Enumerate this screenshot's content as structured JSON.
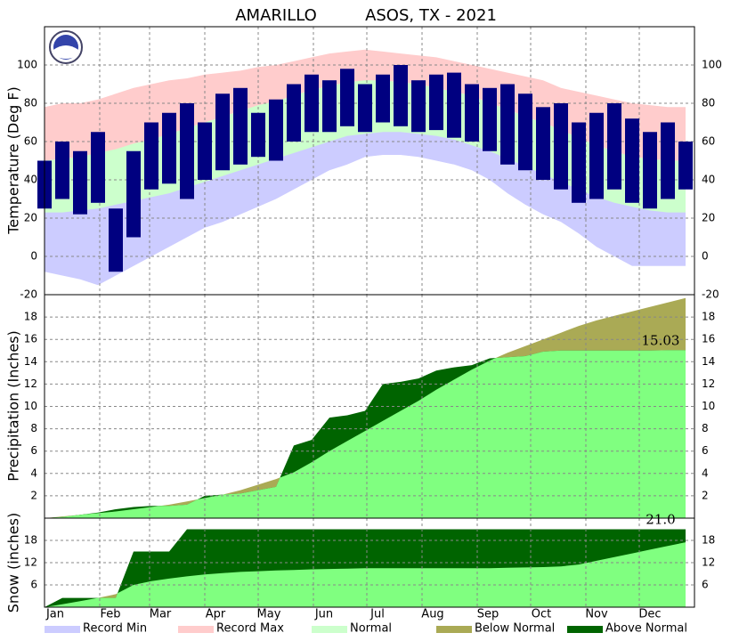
{
  "chart_data": {
    "type": "climate",
    "title": "AMARILLO",
    "subtitle": "ASOS, TX - 2021",
    "xlim": [
      0,
      365
    ],
    "x": [
      0,
      10,
      20,
      30,
      40,
      50,
      60,
      70,
      80,
      90,
      100,
      110,
      120,
      130,
      140,
      150,
      160,
      170,
      180,
      190,
      200,
      210,
      220,
      230,
      240,
      250,
      260,
      270,
      280,
      290,
      300,
      310,
      320,
      330,
      340,
      350,
      360
    ],
    "xticks": [
      {
        "value": 0,
        "label": "Jan"
      },
      {
        "value": 31,
        "label": "Feb"
      },
      {
        "value": 59,
        "label": "Mar"
      },
      {
        "value": 90,
        "label": "Apr"
      },
      {
        "value": 120,
        "label": "May"
      },
      {
        "value": 151,
        "label": "Jun"
      },
      {
        "value": 181,
        "label": "Jul"
      },
      {
        "value": 212,
        "label": "Aug"
      },
      {
        "value": 243,
        "label": "Sep"
      },
      {
        "value": 273,
        "label": "Oct"
      },
      {
        "value": 304,
        "label": "Nov"
      },
      {
        "value": 334,
        "label": "Dec"
      }
    ],
    "legend": [
      {
        "name": "Record Min",
        "color": "#ccccff"
      },
      {
        "name": "Record Max",
        "color": "#ffcccc"
      },
      {
        "name": "Normal",
        "color": "#ccffcc"
      },
      {
        "name": "Below Normal",
        "color": "#aaaa55"
      },
      {
        "name": "Above Normal",
        "color": "#006400"
      }
    ],
    "panels": [
      {
        "type": "temperature",
        "ylabel": "Temperature (Deg F)",
        "ylim": [
          -20,
          120
        ],
        "yticks": [
          -20,
          0,
          20,
          40,
          60,
          80,
          100
        ],
        "grid": true,
        "observed_color": "#000080",
        "record_max": [
          78,
          80,
          80,
          82,
          85,
          88,
          90,
          92,
          93,
          95,
          96,
          97,
          99,
          100,
          102,
          104,
          106,
          107,
          108,
          107,
          106,
          105,
          104,
          102,
          100,
          98,
          96,
          94,
          92,
          88,
          86,
          84,
          82,
          80,
          79,
          78,
          78
        ],
        "normal_high": [
          50,
          51,
          52,
          54,
          56,
          59,
          61,
          64,
          67,
          70,
          73,
          76,
          79,
          81,
          84,
          87,
          89,
          91,
          92,
          92,
          91,
          90,
          88,
          86,
          84,
          80,
          77,
          73,
          70,
          66,
          62,
          58,
          55,
          52,
          51,
          50,
          50
        ],
        "normal_low": [
          23,
          23,
          24,
          25,
          27,
          29,
          31,
          33,
          36,
          39,
          42,
          45,
          48,
          51,
          54,
          57,
          60,
          63,
          64,
          65,
          65,
          64,
          63,
          61,
          58,
          55,
          51,
          47,
          43,
          39,
          35,
          31,
          28,
          26,
          24,
          23,
          23
        ],
        "record_min": [
          -8,
          -10,
          -12,
          -15,
          -10,
          -5,
          0,
          5,
          10,
          15,
          18,
          22,
          26,
          30,
          35,
          40,
          45,
          48,
          52,
          53,
          53,
          52,
          50,
          48,
          45,
          40,
          33,
          27,
          22,
          18,
          12,
          5,
          0,
          -5,
          -5,
          -5,
          -5
        ],
        "observed_high": [
          50,
          60,
          55,
          65,
          25,
          55,
          70,
          75,
          80,
          70,
          85,
          88,
          75,
          82,
          90,
          95,
          92,
          98,
          90,
          95,
          100,
          92,
          95,
          96,
          90,
          88,
          90,
          85,
          78,
          80,
          70,
          75,
          80,
          72,
          65,
          70,
          60
        ],
        "observed_low": [
          25,
          30,
          22,
          28,
          -8,
          10,
          35,
          38,
          30,
          40,
          45,
          48,
          52,
          50,
          60,
          65,
          65,
          68,
          65,
          70,
          68,
          65,
          66,
          62,
          60,
          55,
          48,
          45,
          40,
          35,
          28,
          30,
          35,
          28,
          25,
          30,
          35
        ]
      },
      {
        "type": "cumulative",
        "ylabel": "Precipitation (Inches)",
        "ylim": [
          0,
          20
        ],
        "yticks": [
          2,
          4,
          6,
          8,
          10,
          12,
          14,
          16,
          18
        ],
        "grid": true,
        "normal_color": "#80ff80",
        "below_color": "#aaaa55",
        "above_color": "#006400",
        "observed": [
          0,
          0.1,
          0.3,
          0.5,
          0.8,
          1.0,
          1.1,
          1.1,
          1.2,
          2.0,
          2.1,
          2.2,
          2.5,
          2.8,
          6.5,
          7.0,
          9.0,
          9.2,
          9.6,
          12.0,
          12.2,
          12.5,
          13.2,
          13.5,
          13.7,
          14.3,
          14.4,
          14.5,
          14.9,
          15.0,
          15.0,
          15.0,
          15.0,
          15.0,
          15.0,
          15.03,
          15.03
        ],
        "normal": [
          0,
          0.15,
          0.3,
          0.45,
          0.6,
          0.8,
          1.0,
          1.2,
          1.5,
          1.8,
          2.1,
          2.5,
          3.0,
          3.5,
          4.1,
          5.0,
          6.0,
          6.9,
          7.8,
          8.7,
          9.6,
          10.5,
          11.5,
          12.4,
          13.3,
          14.1,
          14.8,
          15.4,
          16.0,
          16.6,
          17.2,
          17.7,
          18.1,
          18.5,
          18.9,
          19.3,
          19.7
        ],
        "annotation": "15.03"
      },
      {
        "type": "cumulative",
        "ylabel": "Snow (inches)",
        "ylim": [
          0,
          24
        ],
        "yticks": [
          6,
          12,
          18
        ],
        "grid": true,
        "normal_color": "#80ff80",
        "below_color": "#aaaa55",
        "above_color": "#006400",
        "observed": [
          0,
          2.5,
          2.5,
          2.5,
          2.5,
          15,
          15,
          15,
          21,
          21,
          21,
          21,
          21,
          21,
          21,
          21,
          21,
          21,
          21,
          21,
          21,
          21,
          21,
          21,
          21,
          21,
          21,
          21,
          21,
          21,
          21,
          21,
          21,
          21,
          21,
          21,
          21
        ],
        "normal": [
          0,
          0.8,
          1.6,
          2.5,
          3.5,
          6,
          7,
          7.7,
          8.3,
          8.8,
          9.2,
          9.5,
          9.7,
          9.9,
          10.0,
          10.2,
          10.3,
          10.4,
          10.5,
          10.5,
          10.5,
          10.5,
          10.5,
          10.5,
          10.5,
          10.5,
          10.6,
          10.7,
          10.8,
          11.0,
          11.5,
          12.5,
          13.5,
          14.5,
          15.5,
          16.5,
          17.5
        ],
        "annotation": "21.0"
      }
    ]
  }
}
